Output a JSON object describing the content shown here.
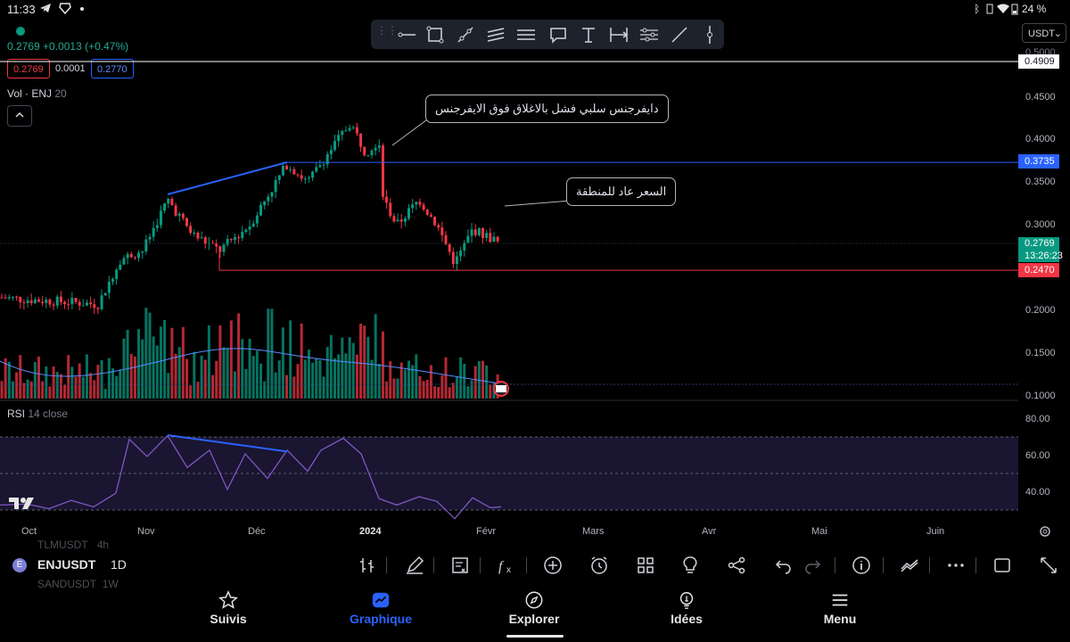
{
  "status_bar": {
    "time": "11:33",
    "battery": "24 %",
    "left_icons": [
      "telegram-icon",
      "brave-icon",
      "dot-icon"
    ],
    "right_icons": [
      "bluetooth-icon",
      "vibrate-icon",
      "wifi-icon",
      "battery-icon"
    ]
  },
  "drawing_toolbar": {
    "tools": [
      "horizontal-ray-icon",
      "rectangle-icon",
      "trend-line-icon",
      "parallel-channel-icon",
      "horizontal-lines-icon",
      "callout-icon",
      "anchored-text-icon",
      "date-range-icon",
      "pitchfork-icon",
      "line-icon",
      "vertical-line-icon"
    ]
  },
  "currency": "USDT",
  "quote": {
    "last": "0.2769",
    "change": "+0.0013 (+0.47%)",
    "bid": "0.2769",
    "spread": "0.0001",
    "ask": "0.2770"
  },
  "volume_indicator": {
    "name": "Vol · ENJ",
    "length": "20"
  },
  "rsi_indicator": {
    "name": "RSI",
    "params": "14 close"
  },
  "annotations": {
    "callout_top": "دايفرجنس سلبي فشل بالاغلاق فوق الايفرجنس",
    "callout_mid": "السعر عاد للمنطقة"
  },
  "price_axis": {
    "labels": [
      "0.4500",
      "0.4000",
      "0.3500",
      "0.3000",
      "0.2000",
      "0.1500",
      "0.1000"
    ],
    "top_partial": "0.5000"
  },
  "price_tags": {
    "upper_line": "0.4909",
    "blue_line": "0.3735",
    "last_price": "0.2769",
    "countdown": "13:26:23",
    "red_line": "0.2470"
  },
  "rsi_axis": {
    "labels": [
      "80.00",
      "60.00",
      "40.00"
    ]
  },
  "time_axis": {
    "labels": [
      "Oct",
      "Nov",
      "Déc",
      "2024",
      "Févr",
      "Mars",
      "Avr",
      "Mai",
      "Juin"
    ]
  },
  "symbol_bar": {
    "symbol": "ENJUSDT",
    "interval": "1D",
    "ghost_prev": "TLMUSDT",
    "ghost_prev_int": "4h",
    "ghost_next": "SANDUSDT",
    "ghost_next_int": "1W"
  },
  "bottom_toolbar": {
    "icons": [
      "compare-icon",
      "draw-icon",
      "template-icon",
      "indicators-icon",
      "add-icon",
      "alert-icon",
      "layout-icon",
      "ideas-icon",
      "share-icon",
      "undo-icon",
      "redo-icon",
      "info-icon",
      "chart-type-icon",
      "more-icon",
      "fullscreen-frame-icon",
      "expand-icon"
    ]
  },
  "nav": {
    "items": [
      {
        "label": "Suivis",
        "icon": "star-icon"
      },
      {
        "label": "Graphique",
        "icon": "chart-icon",
        "active": true
      },
      {
        "label": "Explorer",
        "icon": "compass-icon"
      },
      {
        "label": "Idées",
        "icon": "lightbulb-icon"
      },
      {
        "label": "Menu",
        "icon": "menu-icon"
      }
    ]
  },
  "colors": {
    "up": "#089981",
    "down": "#f23645",
    "blue_line": "#2962ff",
    "rsi_line": "#7e57c2",
    "active_nav": "#2962ff"
  },
  "chart_data": {
    "type": "candlestick",
    "symbol": "ENJUSDT",
    "interval": "1D",
    "x": [
      "Oct",
      "Nov",
      "Déc",
      "2024",
      "Févr"
    ],
    "close_approx": [
      0.215,
      0.318,
      0.372,
      0.41,
      0.2769
    ],
    "ylim": [
      0.1,
      0.5
    ],
    "horizontal_levels": [
      0.4909,
      0.3735,
      0.247
    ],
    "rsi": {
      "ylim": [
        30,
        85
      ],
      "bands": [
        70,
        50,
        30
      ],
      "points": [
        42,
        45,
        41,
        50,
        78,
        66,
        72,
        56,
        71,
        50,
        42,
        48,
        42
      ]
    }
  }
}
